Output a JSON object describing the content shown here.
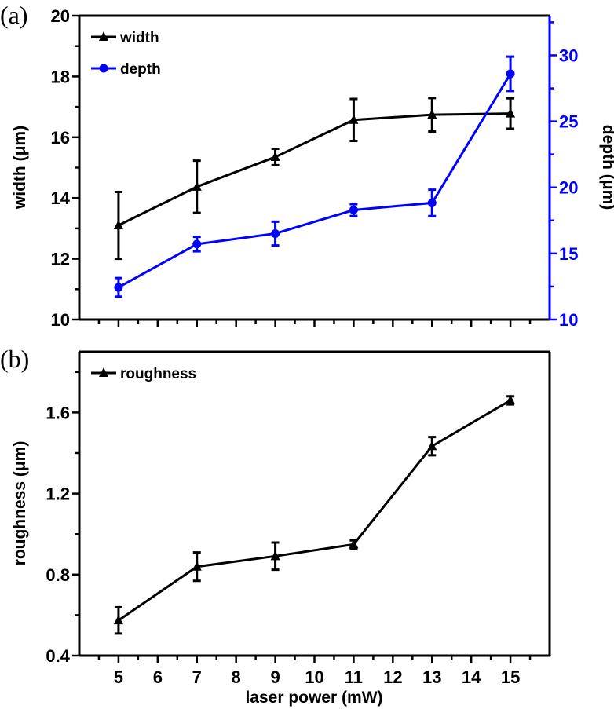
{
  "chart_data": [
    {
      "type": "line",
      "panel_label": "(a)",
      "x": [
        5,
        7,
        9,
        11,
        13,
        15
      ],
      "xlim": [
        4,
        16
      ],
      "xlabel": "",
      "ylabel": "width (μm)",
      "ylim": [
        10,
        20
      ],
      "yticks": [
        "10",
        "12",
        "14",
        "16",
        "18",
        "20"
      ],
      "y2label": "depth (μm)",
      "y2lim": [
        10,
        33
      ],
      "y2ticks": [
        "10",
        "15",
        "20",
        "25",
        "30"
      ],
      "y2_color": "#0000ff",
      "legend": "top-left",
      "series": [
        {
          "name": "width",
          "axis": "left",
          "color": "#000000",
          "marker": "triangle",
          "values": [
            13.1,
            14.37,
            15.35,
            16.57,
            16.74,
            16.78
          ],
          "errors": [
            1.1,
            0.86,
            0.27,
            0.69,
            0.55,
            0.5
          ]
        },
        {
          "name": "depth",
          "axis": "right",
          "color": "#0000ff",
          "marker": "circle",
          "values": [
            12.44,
            15.71,
            16.51,
            18.29,
            18.83,
            28.6
          ],
          "errors": [
            0.7,
            0.55,
            0.9,
            0.45,
            1.0,
            1.3
          ]
        }
      ]
    },
    {
      "type": "line",
      "panel_label": "(b)",
      "x": [
        5,
        7,
        9,
        11,
        13,
        15
      ],
      "xlim": [
        4,
        16
      ],
      "xticks": [
        "5",
        "6",
        "7",
        "8",
        "9",
        "10",
        "11",
        "12",
        "13",
        "14",
        "15"
      ],
      "xlabel": "laser power (mW)",
      "ylabel": "roughness (μm)",
      "ylim": [
        0.4,
        1.9
      ],
      "yticks": [
        "0.4",
        "0.8",
        "1.2",
        "1.6"
      ],
      "legend": "top-left",
      "series": [
        {
          "name": "roughness",
          "color": "#000000",
          "marker": "triangle",
          "values": [
            0.574,
            0.839,
            0.891,
            0.949,
            1.434,
            1.66
          ],
          "errors": [
            0.065,
            0.07,
            0.067,
            0.02,
            0.045,
            0.02
          ]
        }
      ]
    }
  ]
}
